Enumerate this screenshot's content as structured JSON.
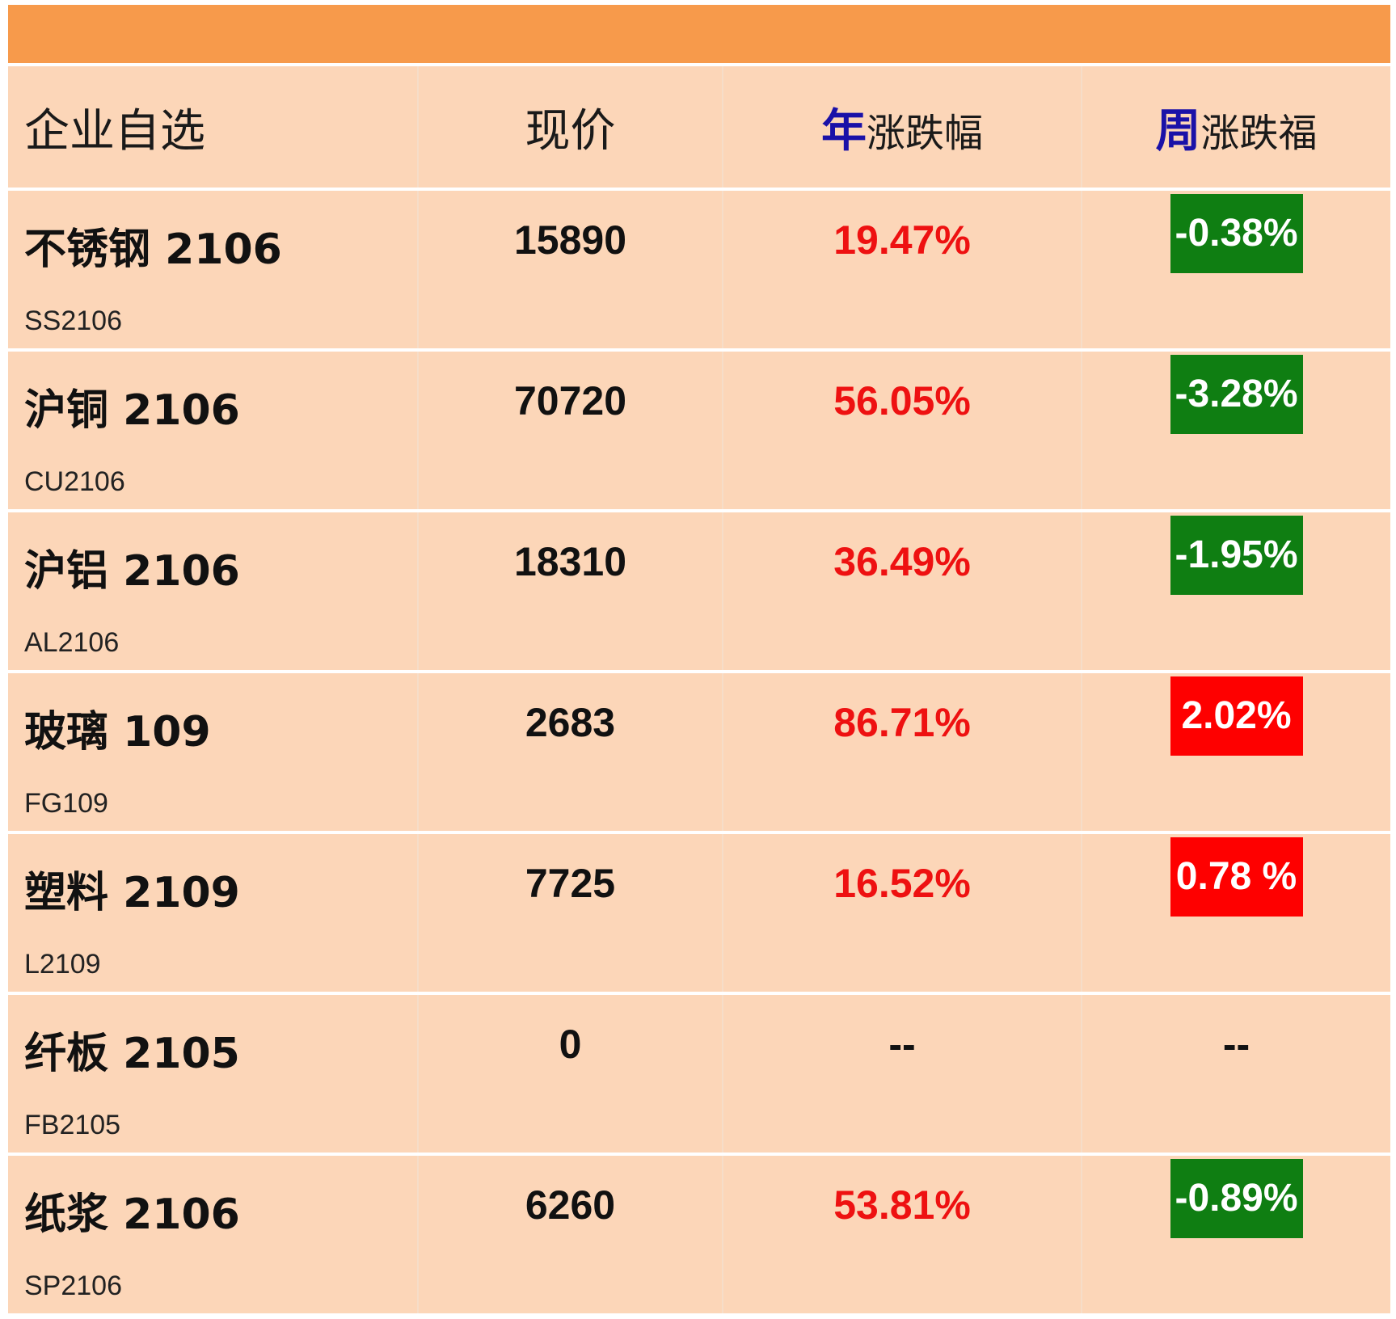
{
  "header": {
    "name": "企业自选",
    "price": "现价",
    "year_accent": "年",
    "year_rest": "涨跌幅",
    "week_accent": "周",
    "week_rest": "涨跌福"
  },
  "rows": [
    {
      "name": "不锈钢 2106",
      "code": "SS2106",
      "price": "15890",
      "year": "19.47%",
      "week": "-0.38%",
      "week_dir": "down"
    },
    {
      "name": "沪铜 2106",
      "code": "CU2106",
      "price": "70720",
      "year": "56.05%",
      "week": "-3.28%",
      "week_dir": "down"
    },
    {
      "name": "沪铝 2106",
      "code": "AL2106",
      "price": "18310",
      "year": "36.49%",
      "week": "-1.95%",
      "week_dir": "down"
    },
    {
      "name": "玻璃 109",
      "code": "FG109",
      "price": "2683",
      "year": "86.71%",
      "week": "2.02%",
      "week_dir": "up"
    },
    {
      "name": "塑料 2109",
      "code": "L2109",
      "price": "7725",
      "year": "16.52%",
      "week": "0.78 %",
      "week_dir": "up"
    },
    {
      "name": "纤板 2105",
      "code": "FB2105",
      "price": "0",
      "year": "--",
      "week": "--",
      "week_dir": "none"
    },
    {
      "name": "纸浆 2106",
      "code": "SP2106",
      "price": "6260",
      "year": "53.81%",
      "week": "-0.89%",
      "week_dir": "down"
    }
  ],
  "colors": {
    "top_bar": "#f79a4b",
    "cell_bg": "#fcd6b8",
    "negative": "#0f7e12",
    "positive": "#fe0000",
    "year_text": "#ee1111",
    "header_accent": "#1a11a8"
  }
}
